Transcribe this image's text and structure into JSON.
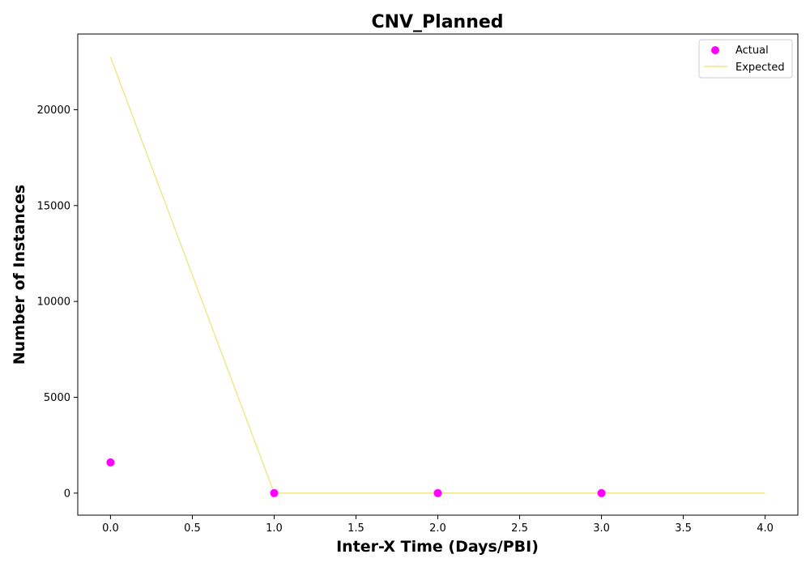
{
  "chart_data": {
    "type": "scatter",
    "title": "CNV_Planned",
    "xlabel": "Inter-X Time (Days/PBI)",
    "ylabel": "Number of Instances",
    "xlim": [
      -0.2,
      4.2
    ],
    "ylim": [
      -1150,
      23950
    ],
    "xticks": [
      0.0,
      0.5,
      1.0,
      1.5,
      2.0,
      2.5,
      3.0,
      3.5,
      4.0
    ],
    "xtick_labels": [
      "0.0",
      "0.5",
      "1.0",
      "1.5",
      "2.0",
      "2.5",
      "3.0",
      "3.5",
      "4.0"
    ],
    "yticks": [
      0,
      5000,
      10000,
      15000,
      20000
    ],
    "ytick_labels": [
      "0",
      "5000",
      "10000",
      "15000",
      "20000"
    ],
    "grid": false,
    "legend_position": "top-right",
    "series": [
      {
        "name": "Actual",
        "kind": "scatter",
        "color": "#ff00ff",
        "x": [
          0,
          1,
          2,
          3
        ],
        "y": [
          1600,
          0,
          0,
          0
        ]
      },
      {
        "name": "Expected",
        "kind": "line",
        "color": "#f0e68c",
        "x": [
          0,
          1,
          2,
          3,
          4
        ],
        "y": [
          22750,
          0,
          0,
          0,
          0
        ]
      }
    ]
  }
}
